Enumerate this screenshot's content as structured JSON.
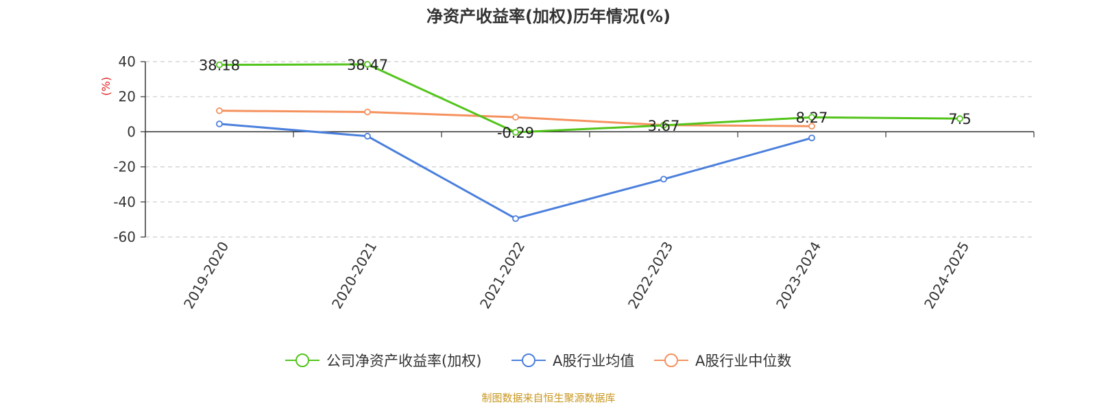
{
  "chart_data": {
    "type": "line",
    "title": "净资产收益率(加权)历年情况(%)",
    "ylabel": "(%)",
    "xlabel": "",
    "categories": [
      "2019-2020",
      "2020-2021",
      "2021-2022",
      "2022-2023",
      "2023-2024",
      "2024-2025"
    ],
    "ylim": [
      -60,
      40
    ],
    "yticks": [
      40,
      20,
      0,
      -20,
      -40,
      -60
    ],
    "grid": true,
    "legend_position": "bottom",
    "series": [
      {
        "name": "公司净资产收益率(加权)",
        "color": "#52c41a",
        "values": [
          38.18,
          38.47,
          -0.29,
          3.67,
          8.27,
          7.5
        ],
        "labels": [
          "38.18",
          "38.47",
          "-0.29",
          "3.67",
          "8.27",
          "7.5"
        ]
      },
      {
        "name": "A股行业均值",
        "color": "#4a7fdc",
        "values": [
          4.5,
          -2.5,
          -49.5,
          -27,
          -3.5,
          null
        ]
      },
      {
        "name": "A股行业中位数",
        "color": "#f5915e",
        "values": [
          12,
          11.3,
          8.3,
          3.8,
          3.2,
          null
        ]
      }
    ]
  },
  "source": "制图数据来自恒生聚源数据库",
  "colors": {
    "axis": "#333333",
    "grid": "#cccccc",
    "ylabel": "#e02020",
    "source": "#c8961e",
    "title": "#333333"
  }
}
